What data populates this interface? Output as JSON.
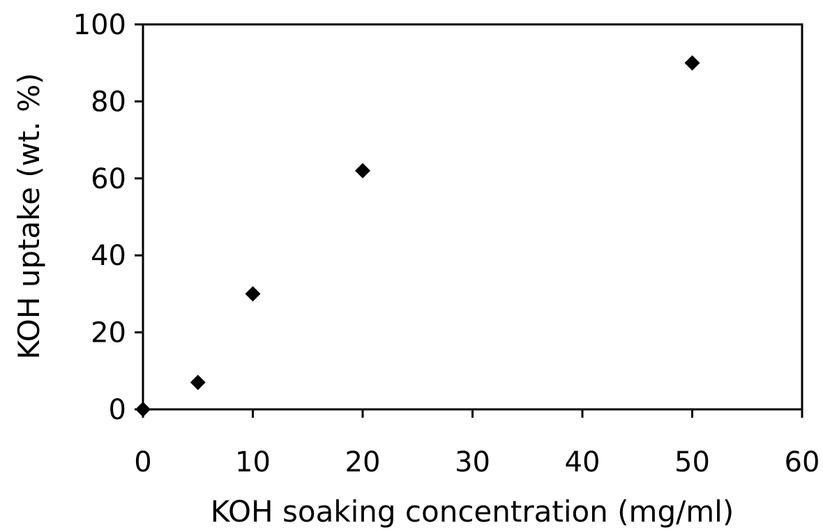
{
  "chart_data": {
    "type": "scatter",
    "title": "",
    "xlabel": "KOH soaking concentration (mg/ml)",
    "ylabel": "KOH uptake (wt. %)",
    "xlim": [
      0,
      60
    ],
    "ylim": [
      0,
      100
    ],
    "x_ticks": [
      0,
      10,
      20,
      30,
      40,
      50,
      60
    ],
    "y_ticks": [
      0,
      20,
      40,
      60,
      80,
      100
    ],
    "grid": false,
    "legend": "none",
    "marker": "diamond",
    "marker_color": "#000000",
    "series": [
      {
        "x": [
          0,
          5,
          10,
          20,
          50
        ],
        "y": [
          0,
          7,
          30,
          62,
          90
        ]
      }
    ]
  }
}
